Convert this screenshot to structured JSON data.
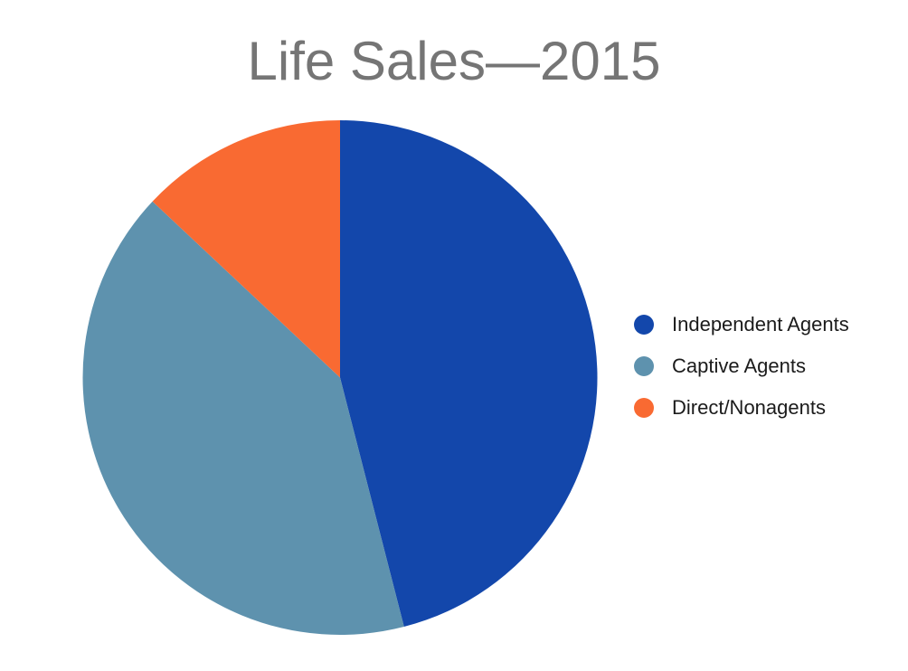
{
  "title": "Life Sales—2015",
  "title_color": "#757575",
  "background_color": "#ffffff",
  "chart_data": {
    "type": "pie",
    "title": "Life Sales—2015",
    "labels": [
      "Independent Agents",
      "Captive Agents",
      "Direct/Nonagents"
    ],
    "values": [
      46,
      41,
      13
    ],
    "colors": [
      "#1347ab",
      "#5e92ae",
      "#f96a32"
    ],
    "start_angle_deg": 0,
    "direction": "clockwise",
    "legend_position": "right",
    "legend_text_color": "#1b1b1b"
  }
}
